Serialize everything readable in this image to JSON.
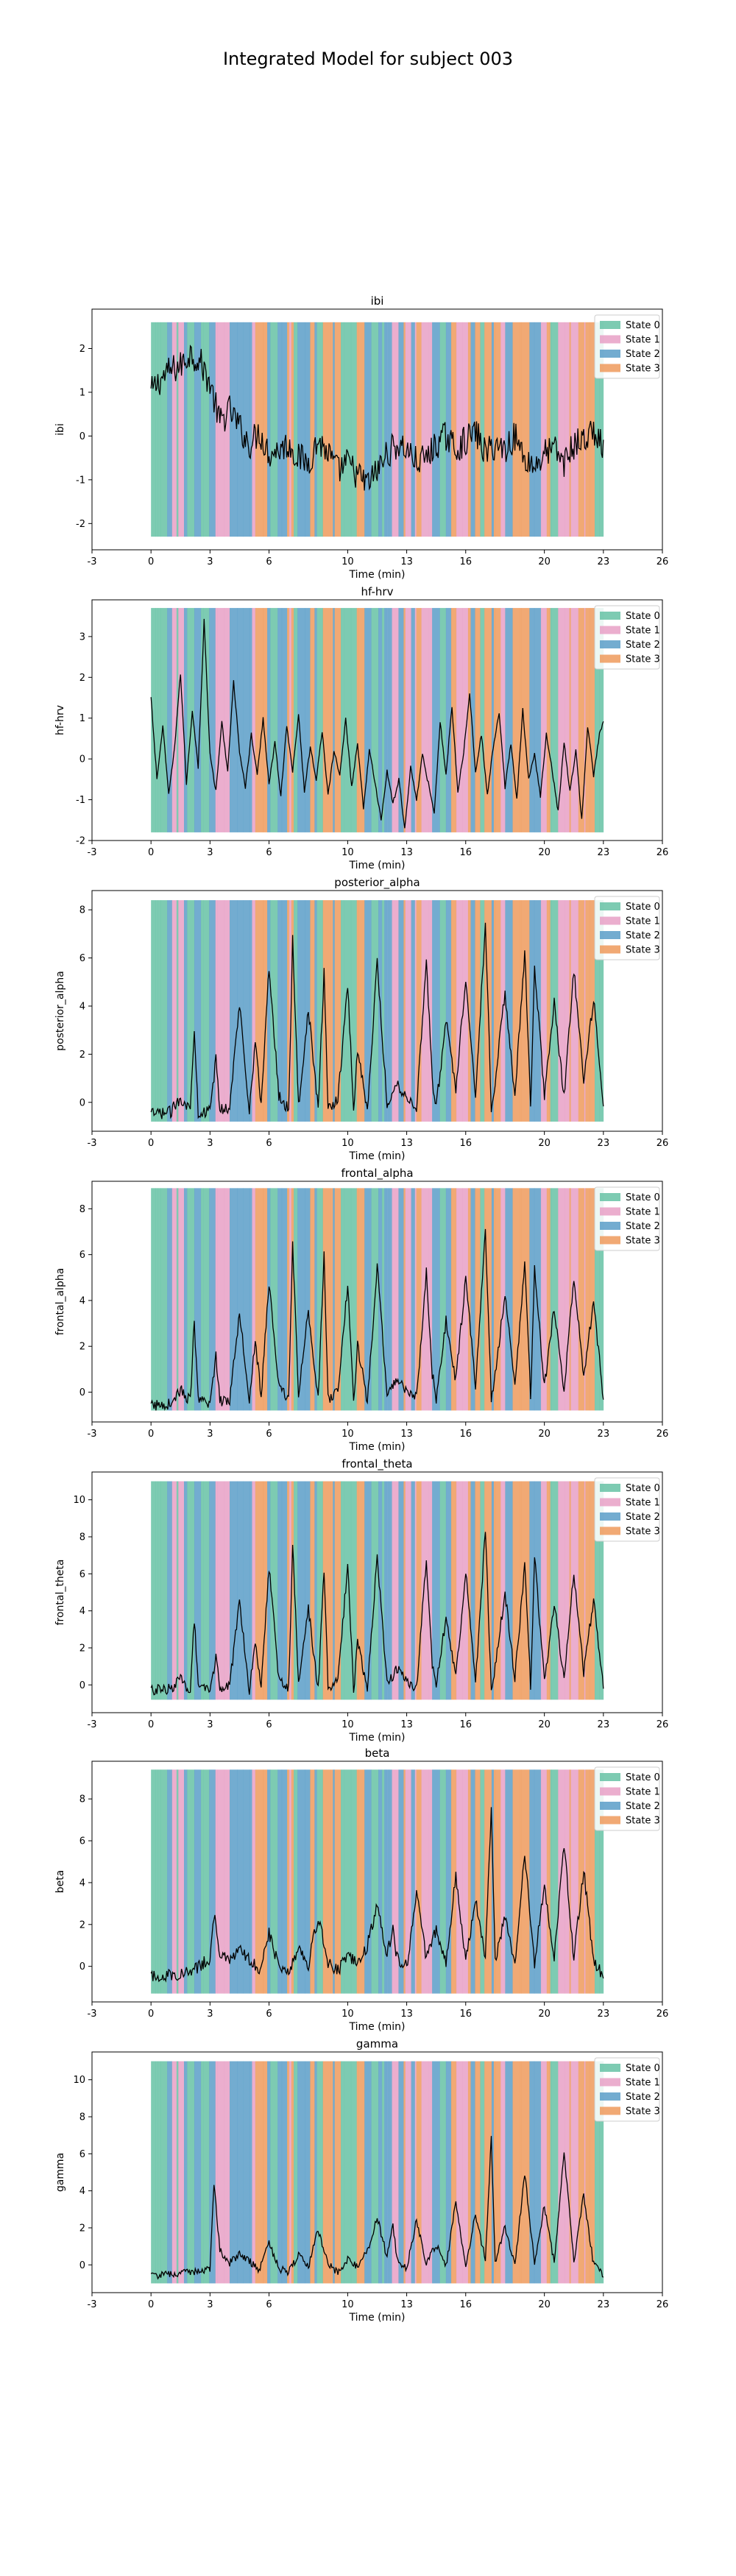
{
  "figure_title": "Integrated Model for subject 003",
  "colors": {
    "state_0": "#66c2a5",
    "state_1": "#e7a0c6",
    "state_2": "#5a9dc8",
    "state_3": "#ef9a5c",
    "signal": "#000000"
  },
  "chart_data": [
    {
      "type": "line",
      "title": "ibi",
      "xlabel": "Time (min)",
      "ylabel": "ibi",
      "xlim": [
        -3,
        26
      ],
      "ylim": [
        -2.6,
        2.9
      ],
      "xticks": [
        -3,
        0,
        3,
        6,
        10,
        13,
        16,
        20,
        23,
        26
      ],
      "yticks": [
        -2,
        -1,
        0,
        1,
        2
      ],
      "band": [
        -2.3,
        2.6
      ],
      "noise": 0.35,
      "legend": {
        "position": "top-right",
        "entries": [
          "State 0",
          "State 1",
          "State 2",
          "State 3"
        ]
      },
      "series": [
        {
          "x": [
            0,
            0.5,
            1,
            1.5,
            2,
            2.5,
            3,
            3.5,
            4,
            4.5,
            5,
            5.5,
            6,
            6.5,
            7,
            7.5,
            8,
            8.5,
            9,
            9.5,
            10,
            10.5,
            11,
            11.5,
            12,
            12.5,
            13,
            13.5,
            14,
            14.5,
            15,
            15.5,
            16,
            16.5,
            17,
            17.5,
            18,
            18.5,
            19,
            19.5,
            20,
            20.5,
            21,
            21.5,
            22,
            22.5,
            23
          ],
          "y": [
            1.0,
            1.3,
            1.5,
            1.6,
            1.9,
            1.7,
            1.2,
            0.3,
            0.6,
            0.2,
            -0.2,
            0.1,
            -0.4,
            -0.3,
            -0.2,
            -0.5,
            -0.6,
            -0.1,
            -0.4,
            -0.8,
            -0.6,
            -0.9,
            -1.1,
            -0.8,
            -0.4,
            -0.2,
            -0.3,
            -0.6,
            -0.5,
            -0.2,
            0.0,
            -0.3,
            -0.1,
            0.1,
            -0.4,
            -0.2,
            -0.3,
            0.0,
            -0.5,
            -0.7,
            -0.4,
            -0.3,
            -0.6,
            -0.2,
            -0.1,
            0.1,
            -0.3
          ]
        }
      ]
    },
    {
      "type": "line",
      "title": "hf-hrv",
      "xlabel": "Time (min)",
      "ylabel": "hf-hrv",
      "xlim": [
        -3,
        26
      ],
      "ylim": [
        -2.0,
        3.9
      ],
      "xticks": [
        -3,
        0,
        3,
        6,
        10,
        13,
        16,
        20,
        23,
        26
      ],
      "yticks": [
        -2,
        -1,
        0,
        1,
        2,
        3
      ],
      "band": [
        -1.8,
        3.7
      ],
      "noise": 0.05,
      "legend": {
        "position": "top-right",
        "entries": [
          "State 0",
          "State 1",
          "State 2",
          "State 3"
        ]
      },
      "series": [
        {
          "x": [
            0,
            0.3,
            0.6,
            0.9,
            1.2,
            1.5,
            1.8,
            2.1,
            2.4,
            2.7,
            3,
            3.3,
            3.6,
            3.9,
            4.2,
            4.5,
            4.8,
            5.1,
            5.4,
            5.7,
            6,
            6.3,
            6.6,
            6.9,
            7.2,
            7.5,
            7.8,
            8.1,
            8.4,
            8.7,
            9,
            9.3,
            9.6,
            9.9,
            10.2,
            10.5,
            10.8,
            11.1,
            11.4,
            11.7,
            12,
            12.3,
            12.6,
            12.9,
            13.2,
            13.5,
            13.8,
            14.1,
            14.4,
            14.7,
            15,
            15.3,
            15.6,
            15.9,
            16.2,
            16.5,
            16.8,
            17.1,
            17.4,
            17.7,
            18,
            18.3,
            18.6,
            18.9,
            19.2,
            19.5,
            19.8,
            20.1,
            20.4,
            20.7,
            21,
            21.3,
            21.6,
            21.9,
            22.2,
            22.5,
            22.8,
            23
          ],
          "y": [
            1.5,
            -0.5,
            0.8,
            -0.9,
            0.3,
            2.1,
            -0.6,
            1.2,
            -0.2,
            3.4,
            0.1,
            -0.8,
            0.9,
            -0.3,
            1.9,
            0.2,
            -0.7,
            0.6,
            -0.4,
            1.0,
            -0.6,
            0.4,
            -0.9,
            0.8,
            -0.3,
            1.1,
            -0.8,
            0.3,
            -0.5,
            0.7,
            -0.9,
            0.2,
            -0.4,
            1.0,
            -0.7,
            0.4,
            -1.2,
            0.2,
            -0.6,
            -1.5,
            -0.3,
            -1.1,
            -0.5,
            -1.7,
            -0.2,
            -1.0,
            0.1,
            -0.6,
            -1.3,
            0.9,
            -0.4,
            1.3,
            -0.8,
            0.2,
            1.6,
            -0.3,
            0.6,
            -0.9,
            0.3,
            1.1,
            -0.7,
            0.4,
            -1.0,
            1.2,
            -0.5,
            0.1,
            -0.9,
            0.6,
            -0.3,
            -1.3,
            0.4,
            -0.8,
            0.2,
            -1.5,
            0.8,
            -0.4,
            0.6,
            0.9
          ]
        }
      ]
    },
    {
      "type": "line",
      "title": "posterior_alpha",
      "xlabel": "Time (min)",
      "ylabel": "posterior_alpha",
      "xlim": [
        -3,
        26
      ],
      "ylim": [
        -1.2,
        8.8
      ],
      "xticks": [
        -3,
        0,
        3,
        6,
        10,
        13,
        16,
        20,
        23,
        26
      ],
      "yticks": [
        0,
        2,
        4,
        6,
        8
      ],
      "band": [
        -0.8,
        8.4
      ],
      "noise": 0.25,
      "legend": {
        "position": "top-right",
        "entries": [
          "State 0",
          "State 1",
          "State 2",
          "State 3"
        ]
      },
      "series": [
        {
          "x": [
            0,
            1,
            1.5,
            2,
            2.2,
            2.4,
            3,
            3.3,
            3.5,
            4,
            4.5,
            5,
            5.3,
            5.6,
            6,
            6.5,
            7,
            7.2,
            7.5,
            8,
            8.5,
            8.8,
            9,
            9.5,
            10,
            10.3,
            10.5,
            11,
            11.5,
            12,
            12.5,
            13,
            13.5,
            14,
            14.3,
            14.5,
            15,
            15.5,
            16,
            16.5,
            17,
            17.3,
            17.5,
            18,
            18.5,
            19,
            19.3,
            19.5,
            20,
            20.5,
            21,
            21.5,
            22,
            22.5,
            23
          ],
          "y": [
            -0.5,
            -0.4,
            0.2,
            -0.3,
            3.2,
            -0.4,
            -0.4,
            1.8,
            -0.3,
            -0.2,
            4.1,
            -0.3,
            2.5,
            -0.1,
            5.6,
            0.3,
            -0.3,
            6.8,
            -0.2,
            3.9,
            -0.3,
            5.4,
            -0.2,
            0.1,
            4.9,
            -0.3,
            2.2,
            -0.3,
            5.8,
            -0.1,
            0.8,
            0.2,
            -0.2,
            5.9,
            0.9,
            -0.2,
            3.4,
            0.6,
            5.2,
            0.3,
            7.4,
            -0.2,
            0.9,
            4.6,
            0.2,
            6.2,
            -0.1,
            5.7,
            0.3,
            4.1,
            0.2,
            5.5,
            0.8,
            4.3,
            -0.2
          ]
        }
      ]
    },
    {
      "type": "line",
      "title": "frontal_alpha",
      "xlabel": "Time (min)",
      "ylabel": "frontal_alpha",
      "xlim": [
        -3,
        26
      ],
      "ylim": [
        -1.3,
        9.2
      ],
      "xticks": [
        -3,
        0,
        3,
        6,
        10,
        13,
        16,
        20,
        23,
        26
      ],
      "yticks": [
        0,
        2,
        4,
        6,
        8
      ],
      "band": [
        -0.8,
        8.9
      ],
      "noise": 0.25,
      "legend": {
        "position": "top-right",
        "entries": [
          "State 0",
          "State 1",
          "State 2",
          "State 3"
        ]
      },
      "series": [
        {
          "x": [
            0,
            1,
            1.5,
            2,
            2.2,
            2.4,
            3,
            3.3,
            3.5,
            4,
            4.5,
            5,
            5.3,
            5.6,
            6,
            6.5,
            7,
            7.2,
            7.5,
            8,
            8.5,
            8.8,
            9,
            9.5,
            10,
            10.3,
            10.5,
            11,
            11.5,
            12,
            12.5,
            13,
            13.5,
            14,
            14.3,
            14.5,
            15,
            15.5,
            16,
            16.5,
            17,
            17.3,
            17.5,
            18,
            18.5,
            19,
            19.3,
            19.5,
            20,
            20.5,
            21,
            21.5,
            22,
            22.5,
            23
          ],
          "y": [
            -0.6,
            -0.5,
            0.1,
            -0.4,
            3.1,
            -0.4,
            -0.5,
            1.6,
            -0.4,
            -0.3,
            3.5,
            -0.3,
            2.3,
            -0.2,
            4.8,
            0.2,
            -0.3,
            6.6,
            -0.2,
            3.6,
            -0.3,
            5.9,
            -0.3,
            0.0,
            4.7,
            -0.3,
            2.0,
            -0.4,
            5.5,
            -0.2,
            0.6,
            0.1,
            -0.3,
            5.2,
            0.8,
            -0.3,
            3.1,
            0.5,
            5.0,
            0.2,
            7.1,
            -0.3,
            0.7,
            4.4,
            0.1,
            5.8,
            -0.2,
            5.3,
            0.2,
            3.7,
            0.1,
            5.0,
            0.6,
            4.0,
            -0.3
          ]
        }
      ]
    },
    {
      "type": "line",
      "title": "frontal_theta",
      "xlabel": "Time (min)",
      "ylabel": "frontal_theta",
      "xlim": [
        -3,
        26
      ],
      "ylim": [
        -1.5,
        11.5
      ],
      "xticks": [
        -3,
        0,
        3,
        6,
        10,
        13,
        16,
        20,
        23,
        26
      ],
      "yticks": [
        0,
        2,
        4,
        6,
        8,
        10
      ],
      "band": [
        -0.8,
        11.0
      ],
      "noise": 0.3,
      "legend": {
        "position": "top-right",
        "entries": [
          "State 0",
          "State 1",
          "State 2",
          "State 3"
        ]
      },
      "series": [
        {
          "x": [
            0,
            1,
            1.5,
            2,
            2.2,
            2.4,
            3,
            3.3,
            3.5,
            4,
            4.5,
            5,
            5.3,
            5.6,
            6,
            6.5,
            7,
            7.2,
            7.5,
            8,
            8.5,
            8.8,
            9,
            9.5,
            10,
            10.3,
            10.5,
            11,
            11.5,
            12,
            12.5,
            13,
            13.5,
            14,
            14.3,
            14.5,
            15,
            15.5,
            16,
            16.5,
            17,
            17.3,
            17.5,
            18,
            18.5,
            19,
            19.3,
            19.5,
            20,
            20.5,
            21,
            21.5,
            22,
            22.5,
            23
          ],
          "y": [
            -0.3,
            -0.2,
            0.3,
            -0.3,
            3.6,
            -0.2,
            -0.3,
            1.5,
            -0.2,
            -0.1,
            4.6,
            -0.3,
            2.4,
            0.0,
            6.4,
            0.3,
            -0.2,
            7.8,
            -0.1,
            4.2,
            -0.3,
            6.3,
            -0.2,
            0.2,
            6.5,
            -0.3,
            2.3,
            -0.2,
            7.0,
            0.0,
            0.9,
            0.2,
            -0.2,
            6.8,
            1.0,
            -0.1,
            3.6,
            0.4,
            6.2,
            0.2,
            8.3,
            -0.2,
            1.0,
            5.0,
            0.3,
            6.4,
            -0.1,
            6.9,
            0.2,
            4.4,
            0.2,
            6.1,
            0.7,
            4.6,
            -0.1
          ]
        }
      ]
    },
    {
      "type": "line",
      "title": "beta",
      "xlabel": "Time (min)",
      "ylabel": "beta",
      "xlim": [
        -3,
        26
      ],
      "ylim": [
        -1.7,
        9.8
      ],
      "xticks": [
        -3,
        0,
        3,
        6,
        10,
        13,
        16,
        20,
        23,
        26
      ],
      "yticks": [
        0,
        2,
        4,
        6,
        8
      ],
      "band": [
        -1.3,
        9.4
      ],
      "noise": 0.3,
      "legend": {
        "position": "top-right",
        "entries": [
          "State 0",
          "State 1",
          "State 2",
          "State 3"
        ]
      },
      "series": [
        {
          "x": [
            0,
            1,
            2,
            3,
            3.2,
            3.5,
            4,
            4.5,
            5,
            5.5,
            6,
            6.5,
            7,
            7.5,
            8,
            8.5,
            9,
            9.5,
            10,
            10.5,
            11,
            11.5,
            12,
            12.3,
            12.5,
            13,
            13.5,
            14,
            14.5,
            15,
            15.5,
            16,
            16.5,
            17,
            17.3,
            17.5,
            18,
            18.5,
            19,
            19.5,
            20,
            20.5,
            21,
            21.5,
            22,
            22.5,
            23
          ],
          "y": [
            -0.5,
            -0.4,
            -0.3,
            0.4,
            2.5,
            0.6,
            0.2,
            0.8,
            0.3,
            -0.1,
            1.6,
            0.0,
            -0.2,
            0.9,
            0.1,
            2.4,
            0.2,
            -0.2,
            0.5,
            0.1,
            1.0,
            2.9,
            0.6,
            1.8,
            0.4,
            0.0,
            3.5,
            0.3,
            1.8,
            0.1,
            4.4,
            0.2,
            3.1,
            0.5,
            7.6,
            0.3,
            2.5,
            0.1,
            5.3,
            0.2,
            3.9,
            0.3,
            5.8,
            0.4,
            4.6,
            0.2,
            -0.4
          ]
        }
      ]
    },
    {
      "type": "line",
      "title": "gamma",
      "xlabel": "Time (min)",
      "ylabel": "gamma",
      "xlim": [
        -3,
        26
      ],
      "ylim": [
        -1.5,
        11.5
      ],
      "xticks": [
        -3,
        0,
        3,
        6,
        10,
        13,
        16,
        20,
        23,
        26
      ],
      "yticks": [
        0,
        2,
        4,
        6,
        8,
        10
      ],
      "band": [
        -1.0,
        11.0
      ],
      "noise": 0.2,
      "legend": {
        "position": "top-right",
        "entries": [
          "State 0",
          "State 1",
          "State 2",
          "State 3"
        ]
      },
      "series": [
        {
          "x": [
            0,
            1,
            2,
            3,
            3.2,
            3.5,
            4,
            4.5,
            5,
            5.5,
            6,
            6.5,
            7,
            7.5,
            8,
            8.5,
            9,
            9.5,
            10,
            10.5,
            11,
            11.5,
            12,
            12.3,
            12.5,
            13,
            13.5,
            14,
            14.5,
            15,
            15.5,
            16,
            16.5,
            17,
            17.3,
            17.5,
            18,
            18.5,
            19,
            19.5,
            20,
            20.5,
            21,
            21.5,
            22,
            22.5,
            23
          ],
          "y": [
            -0.6,
            -0.5,
            -0.4,
            -0.2,
            4.5,
            0.8,
            0.1,
            0.6,
            0.2,
            -0.3,
            1.2,
            -0.2,
            -0.4,
            0.5,
            -0.1,
            1.9,
            0.0,
            -0.4,
            0.3,
            -0.1,
            0.7,
            2.6,
            0.4,
            2.2,
            0.3,
            -0.2,
            2.4,
            0.1,
            1.1,
            -0.1,
            3.4,
            0.0,
            2.7,
            0.3,
            6.9,
            0.2,
            2.1,
            -0.1,
            5.0,
            0.0,
            3.2,
            0.1,
            6.0,
            0.2,
            3.8,
            0.0,
            -0.5
          ]
        }
      ]
    }
  ]
}
